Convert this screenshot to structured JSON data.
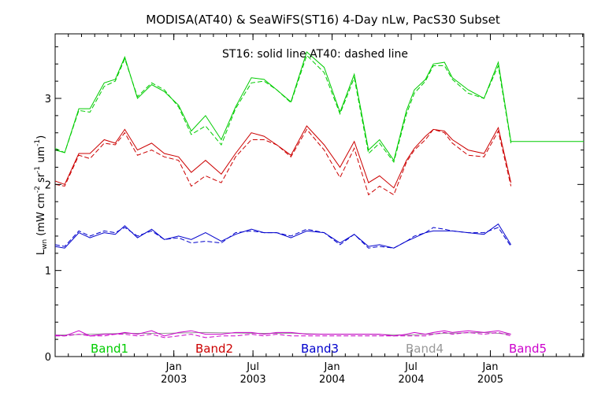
{
  "chart_data": {
    "type": "line",
    "title": "MODISA(AT40) & SeaWiFS(ST16) 4-Day nLw, PacS30 Subset",
    "annotation": "ST16: solid line   AT40: dashed line",
    "ylabel": {
      "main": "L",
      "sub": "wn",
      "units_open": " (mW cm",
      "sup1": "-2",
      "mid1": " sr",
      "sup2": "-1",
      "mid2": " um",
      "sup3": "-1",
      "units_close": ")"
    },
    "ylim": [
      0,
      3.75
    ],
    "xlim": [
      2002.25,
      2005.59
    ],
    "grid": false,
    "y_ticks": [
      {
        "value": 0,
        "label": "0"
      },
      {
        "value": 1,
        "label": "1"
      },
      {
        "value": 2,
        "label": "2"
      },
      {
        "value": 3,
        "label": "3"
      }
    ],
    "x_ticks": [
      {
        "value": 2003.0,
        "label_top": "Jan",
        "label_bottom": "2003"
      },
      {
        "value": 2003.5,
        "label_top": "Jul",
        "label_bottom": "2003"
      },
      {
        "value": 2004.0,
        "label_top": "Jan",
        "label_bottom": "2004"
      },
      {
        "value": 2004.5,
        "label_top": "Jul",
        "label_bottom": "2004"
      },
      {
        "value": 2005.0,
        "label_top": "Jan",
        "label_bottom": "2005"
      }
    ],
    "series": [
      {
        "name": "Band1",
        "sensor": "ST16",
        "style": "solid",
        "color": "#00cc00",
        "x": [
          2002.25,
          2002.31,
          2002.4,
          2002.47,
          2002.56,
          2002.63,
          2002.69,
          2002.77,
          2002.86,
          2002.94,
          2003.03,
          2003.11,
          2003.2,
          2003.3,
          2003.39,
          2003.49,
          2003.57,
          2003.65,
          2003.74,
          2003.84,
          2003.95,
          2004.05,
          2004.14,
          2004.23,
          2004.3,
          2004.39,
          2004.47,
          2004.52,
          2004.59,
          2004.64,
          2004.71,
          2004.76,
          2004.86,
          2004.96,
          2005.05,
          2005.13,
          2005.18,
          2005.26,
          2005.33,
          2005.42,
          2005.5,
          2005.59
        ],
        "y": [
          2.4,
          2.37,
          2.88,
          2.88,
          3.18,
          3.22,
          3.48,
          3.0,
          3.16,
          3.08,
          2.92,
          2.62,
          2.8,
          2.52,
          2.9,
          3.24,
          3.22,
          3.1,
          2.96,
          3.54,
          3.36,
          2.84,
          3.28,
          2.4,
          2.52,
          2.28,
          2.86,
          3.1,
          3.22,
          3.4,
          3.42,
          3.24,
          3.1,
          3.0,
          3.42,
          2.5,
          2.5,
          2.5,
          2.5,
          2.5,
          2.5,
          2.5
        ]
      },
      {
        "name": "Band1",
        "sensor": "AT40",
        "style": "dashed",
        "color": "#00cc00",
        "x": [
          2002.25,
          2002.31,
          2002.4,
          2002.47,
          2002.56,
          2002.63,
          2002.69,
          2002.77,
          2002.86,
          2002.94,
          2003.03,
          2003.11,
          2003.2,
          2003.3,
          2003.39,
          2003.49,
          2003.57,
          2003.65,
          2003.74,
          2003.84,
          2003.95,
          2004.05,
          2004.14,
          2004.23,
          2004.3,
          2004.39,
          2004.47,
          2004.52,
          2004.59,
          2004.64,
          2004.71,
          2004.76,
          2004.86,
          2004.96,
          2005.05,
          2005.13
        ],
        "y": [
          2.42,
          2.37,
          2.86,
          2.84,
          3.14,
          3.2,
          3.46,
          3.02,
          3.18,
          3.1,
          2.9,
          2.58,
          2.68,
          2.46,
          2.88,
          3.18,
          3.2,
          3.1,
          2.95,
          3.5,
          3.3,
          2.82,
          3.24,
          2.36,
          2.48,
          2.26,
          2.82,
          3.06,
          3.2,
          3.38,
          3.38,
          3.22,
          3.06,
          3.0,
          3.38,
          2.48
        ]
      },
      {
        "name": "Band2",
        "sensor": "ST16",
        "style": "solid",
        "color": "#cc0000",
        "x": [
          2002.25,
          2002.31,
          2002.4,
          2002.47,
          2002.56,
          2002.63,
          2002.69,
          2002.77,
          2002.86,
          2002.94,
          2003.03,
          2003.11,
          2003.2,
          2003.3,
          2003.39,
          2003.49,
          2003.57,
          2003.65,
          2003.74,
          2003.84,
          2003.95,
          2004.05,
          2004.14,
          2004.23,
          2004.3,
          2004.39,
          2004.47,
          2004.52,
          2004.59,
          2004.64,
          2004.71,
          2004.76,
          2004.86,
          2004.96,
          2005.05,
          2005.13
        ],
        "y": [
          2.04,
          2.0,
          2.36,
          2.36,
          2.52,
          2.48,
          2.64,
          2.4,
          2.48,
          2.36,
          2.32,
          2.14,
          2.28,
          2.12,
          2.36,
          2.6,
          2.56,
          2.46,
          2.34,
          2.68,
          2.46,
          2.2,
          2.5,
          2.02,
          2.1,
          1.96,
          2.28,
          2.42,
          2.56,
          2.64,
          2.62,
          2.52,
          2.4,
          2.36,
          2.66,
          2.02
        ]
      },
      {
        "name": "Band2",
        "sensor": "AT40",
        "style": "dashed",
        "color": "#cc0000",
        "x": [
          2002.25,
          2002.31,
          2002.4,
          2002.47,
          2002.56,
          2002.63,
          2002.69,
          2002.77,
          2002.86,
          2002.94,
          2003.03,
          2003.11,
          2003.2,
          2003.3,
          2003.39,
          2003.49,
          2003.57,
          2003.65,
          2003.74,
          2003.84,
          2003.95,
          2004.05,
          2004.14,
          2004.23,
          2004.3,
          2004.39,
          2004.47,
          2004.52,
          2004.59,
          2004.64,
          2004.71,
          2004.76,
          2004.86,
          2004.96,
          2005.05,
          2005.13
        ],
        "y": [
          2.0,
          1.98,
          2.34,
          2.3,
          2.48,
          2.46,
          2.6,
          2.34,
          2.4,
          2.32,
          2.28,
          1.98,
          2.1,
          2.02,
          2.32,
          2.52,
          2.52,
          2.46,
          2.32,
          2.64,
          2.4,
          2.08,
          2.42,
          1.88,
          1.98,
          1.88,
          2.26,
          2.4,
          2.52,
          2.64,
          2.6,
          2.48,
          2.34,
          2.32,
          2.62,
          1.98
        ]
      },
      {
        "name": "Band3",
        "sensor": "ST16",
        "style": "solid",
        "color": "#0000cc",
        "x": [
          2002.25,
          2002.31,
          2002.4,
          2002.47,
          2002.56,
          2002.63,
          2002.69,
          2002.77,
          2002.86,
          2002.94,
          2003.03,
          2003.11,
          2003.2,
          2003.3,
          2003.39,
          2003.49,
          2003.57,
          2003.65,
          2003.74,
          2003.84,
          2003.95,
          2004.05,
          2004.14,
          2004.23,
          2004.3,
          2004.39,
          2004.47,
          2004.52,
          2004.59,
          2004.64,
          2004.71,
          2004.76,
          2004.86,
          2004.96,
          2005.05,
          2005.13
        ],
        "y": [
          1.28,
          1.26,
          1.44,
          1.38,
          1.44,
          1.42,
          1.52,
          1.38,
          1.48,
          1.36,
          1.4,
          1.36,
          1.44,
          1.34,
          1.42,
          1.48,
          1.44,
          1.44,
          1.38,
          1.46,
          1.44,
          1.32,
          1.42,
          1.28,
          1.3,
          1.26,
          1.34,
          1.38,
          1.44,
          1.46,
          1.46,
          1.46,
          1.44,
          1.42,
          1.54,
          1.3
        ]
      },
      {
        "name": "Band3",
        "sensor": "AT40",
        "style": "dashed",
        "color": "#0000cc",
        "x": [
          2002.25,
          2002.31,
          2002.4,
          2002.47,
          2002.56,
          2002.63,
          2002.69,
          2002.77,
          2002.86,
          2002.94,
          2003.03,
          2003.11,
          2003.2,
          2003.3,
          2003.39,
          2003.49,
          2003.57,
          2003.65,
          2003.74,
          2003.84,
          2003.95,
          2004.05,
          2004.14,
          2004.23,
          2004.3,
          2004.39,
          2004.47,
          2004.52,
          2004.59,
          2004.64,
          2004.71,
          2004.76,
          2004.86,
          2004.96,
          2005.05,
          2005.13
        ],
        "y": [
          1.3,
          1.28,
          1.46,
          1.4,
          1.46,
          1.44,
          1.5,
          1.4,
          1.46,
          1.36,
          1.38,
          1.32,
          1.34,
          1.32,
          1.44,
          1.46,
          1.44,
          1.44,
          1.4,
          1.48,
          1.44,
          1.3,
          1.42,
          1.26,
          1.28,
          1.26,
          1.34,
          1.4,
          1.44,
          1.5,
          1.48,
          1.46,
          1.44,
          1.44,
          1.5,
          1.28
        ]
      },
      {
        "name": "Band4",
        "sensor": "ST16",
        "style": "solid",
        "color": "#999999",
        "x": [
          2002.25,
          2002.47,
          2002.69,
          2002.94,
          2003.2,
          2003.49,
          2003.74,
          2003.95,
          2004.23,
          2004.47,
          2004.71,
          2004.96,
          2005.13
        ],
        "y": [
          0.25,
          0.26,
          0.27,
          0.27,
          0.28,
          0.27,
          0.27,
          0.26,
          0.26,
          0.25,
          0.27,
          0.28,
          0.26
        ]
      },
      {
        "name": "Band5",
        "sensor": "ST16",
        "style": "solid",
        "color": "#cc00cc",
        "x": [
          2002.25,
          2002.31,
          2002.4,
          2002.47,
          2002.56,
          2002.63,
          2002.69,
          2002.77,
          2002.86,
          2002.94,
          2003.03,
          2003.11,
          2003.2,
          2003.3,
          2003.39,
          2003.49,
          2003.57,
          2003.65,
          2003.74,
          2003.84,
          2003.95,
          2004.05,
          2004.14,
          2004.23,
          2004.3,
          2004.39,
          2004.47,
          2004.52,
          2004.59,
          2004.64,
          2004.71,
          2004.76,
          2004.86,
          2004.96,
          2005.05,
          2005.13
        ],
        "y": [
          0.25,
          0.24,
          0.3,
          0.24,
          0.26,
          0.26,
          0.28,
          0.26,
          0.3,
          0.24,
          0.28,
          0.3,
          0.26,
          0.26,
          0.28,
          0.28,
          0.26,
          0.28,
          0.28,
          0.26,
          0.26,
          0.26,
          0.26,
          0.26,
          0.26,
          0.24,
          0.26,
          0.28,
          0.26,
          0.28,
          0.3,
          0.28,
          0.3,
          0.28,
          0.3,
          0.26
        ]
      },
      {
        "name": "Band5",
        "sensor": "AT40",
        "style": "dashed",
        "color": "#cc00cc",
        "x": [
          2002.25,
          2002.31,
          2002.4,
          2002.47,
          2002.56,
          2002.63,
          2002.69,
          2002.77,
          2002.86,
          2002.94,
          2003.03,
          2003.11,
          2003.2,
          2003.3,
          2003.39,
          2003.49,
          2003.57,
          2003.65,
          2003.74,
          2003.84,
          2003.95,
          2004.05,
          2004.14,
          2004.23,
          2004.3,
          2004.39,
          2004.47,
          2004.52,
          2004.59,
          2004.64,
          2004.71,
          2004.76,
          2004.86,
          2004.96,
          2005.05,
          2005.13
        ],
        "y": [
          0.24,
          0.24,
          0.26,
          0.24,
          0.24,
          0.26,
          0.26,
          0.24,
          0.26,
          0.22,
          0.24,
          0.26,
          0.22,
          0.24,
          0.24,
          0.26,
          0.24,
          0.26,
          0.24,
          0.24,
          0.24,
          0.24,
          0.24,
          0.24,
          0.24,
          0.24,
          0.24,
          0.24,
          0.24,
          0.26,
          0.28,
          0.26,
          0.28,
          0.26,
          0.28,
          0.24
        ]
      }
    ],
    "band_labels": [
      {
        "label": "Band1",
        "color": "#00cc00"
      },
      {
        "label": "Band2",
        "color": "#cc0000"
      },
      {
        "label": "Band3",
        "color": "#0000cc"
      },
      {
        "label": "Band4",
        "color": "#999999"
      },
      {
        "label": "Band5",
        "color": "#cc00cc"
      }
    ]
  }
}
